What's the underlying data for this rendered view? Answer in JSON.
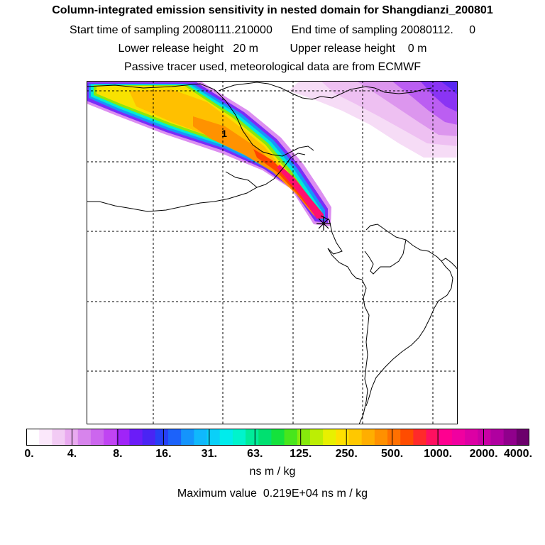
{
  "header": {
    "title": "Column-integrated emission sensitivity in nested domain for Shangdianzi_200801",
    "start_label": "Start time of sampling",
    "start_value": "20080111.210000",
    "end_label": "End time of sampling",
    "end_value": "20080112.",
    "end_value2": "0",
    "lower_label": "Lower release height",
    "lower_value": "20 m",
    "upper_label": "Upper release height",
    "upper_value": "0 m",
    "tracer_note": "Passive tracer used, meteorological data are from ECMWF"
  },
  "map": {
    "plume_label": "1",
    "release_marker": "receptor-star"
  },
  "colorbar": {
    "tick_labels": [
      "0.",
      "4.",
      "8.",
      "16.",
      "31.",
      "63.",
      "125.",
      "250.",
      "500.",
      "1000.",
      "2000.",
      "4000."
    ],
    "colors": [
      "#ffffff",
      "#fbe8fb",
      "#f2cbf4",
      "#e9aaf0",
      "#d784ec",
      "#cc66ee",
      "#c044f2",
      "#a024f8",
      "#6b1cf8",
      "#4a24f4",
      "#2640f6",
      "#1c62fa",
      "#1494fc",
      "#10b8fc",
      "#0ad0f8",
      "#00ecec",
      "#00f4cc",
      "#00ec9a",
      "#00e070",
      "#14e23c",
      "#48e61c",
      "#86ea0c",
      "#bcee04",
      "#e8f000",
      "#ffe000",
      "#ffc800",
      "#ffae00",
      "#ff9000",
      "#ff7000",
      "#ff4c00",
      "#ff2a2a",
      "#ff1060",
      "#ff0090",
      "#f000a0",
      "#dc00a4",
      "#c800a4",
      "#b000a0",
      "#90008c",
      "#6c006c"
    ],
    "units": "ns m / kg"
  },
  "footer": {
    "max_label": "Maximum value",
    "max_value": "0.219E+04",
    "max_units": "ns m / kg"
  }
}
